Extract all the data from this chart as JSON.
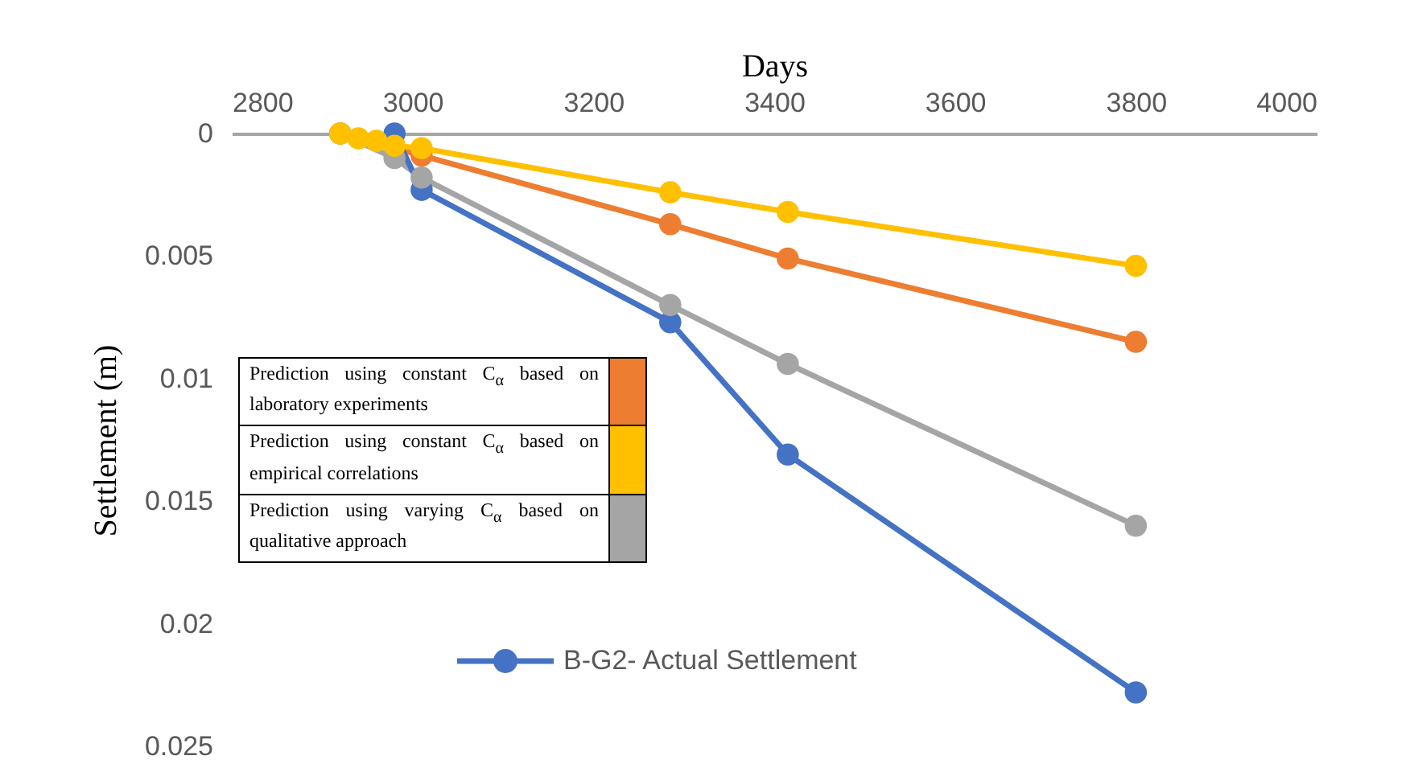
{
  "chart_data": {
    "type": "line",
    "xlabel": "Days",
    "ylabel": "Settlement (m)",
    "x": [
      2920,
      2940,
      2960,
      2980,
      3010,
      3285,
      3415,
      3800
    ],
    "xlim": [
      2800,
      4000
    ],
    "xticks": [
      2800,
      3000,
      3200,
      3400,
      3600,
      3800,
      4000
    ],
    "ylim": [
      0.025,
      0
    ],
    "yticks": [
      0,
      0.005,
      0.01,
      0.015,
      0.02,
      0.025
    ],
    "marker": "circle",
    "legend": "bottom left",
    "grid": false,
    "series": [
      {
        "name": "Prediction using constant C$_{α}$ based on laboratory experiments",
        "color": "#ed7d31",
        "values": [
          0,
          null,
          null,
          null,
          0.0009,
          0.0037,
          0.0051,
          0.0085
        ]
      },
      {
        "name": "Prediction using constant C$_{α}$ based on empirical correlations",
        "color": "#ffc000",
        "values": [
          0,
          0.0002,
          0.0003,
          0.0005,
          0.0006,
          0.0024,
          0.0032,
          0.0054
        ]
      },
      {
        "name": "Prediction using varying C$_{α}$ based on qualitative approach",
        "color": "#a5a5a5",
        "values": [
          0,
          null,
          null,
          0.001,
          0.0018,
          0.007,
          0.0094,
          0.016
        ]
      },
      {
        "name": "B-G2- Actual Settlement",
        "color": "#4472c4",
        "values": [
          null,
          null,
          null,
          0,
          0.0023,
          0.0077,
          0.0131,
          0.0228
        ]
      }
    ]
  }
}
